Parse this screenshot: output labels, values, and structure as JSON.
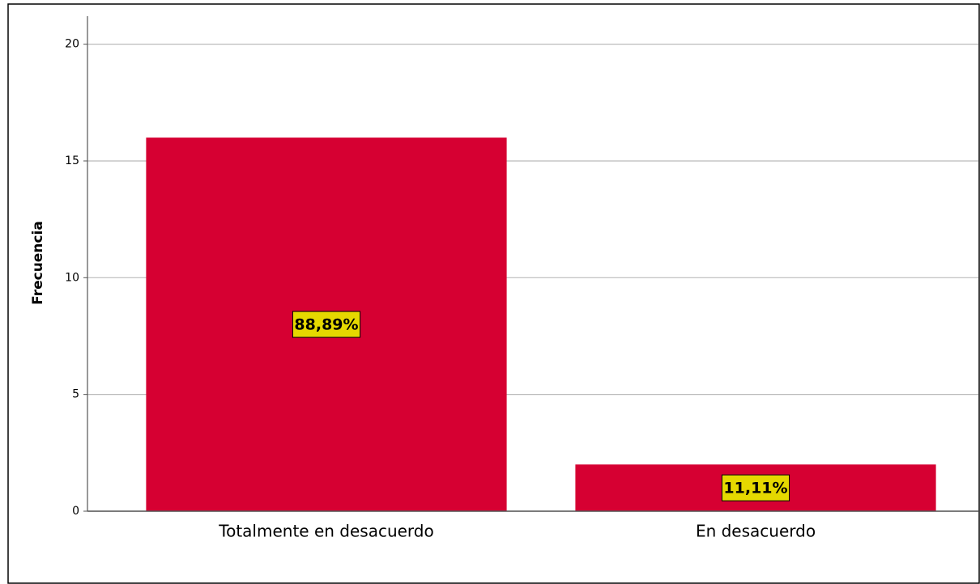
{
  "chart_data": {
    "type": "bar",
    "y_label": "Frecuencia",
    "categories": [
      "Totalmente en desacuerdo",
      "En desacuerdo"
    ],
    "values": [
      16,
      2
    ],
    "percent_labels": [
      "88,89%",
      "11,11%"
    ],
    "color": "#d60032",
    "label_box_color": "#e5d800",
    "ylim": [
      0,
      21.2
    ],
    "yticks": [
      0,
      5,
      10,
      15,
      20
    ],
    "grid": true
  }
}
